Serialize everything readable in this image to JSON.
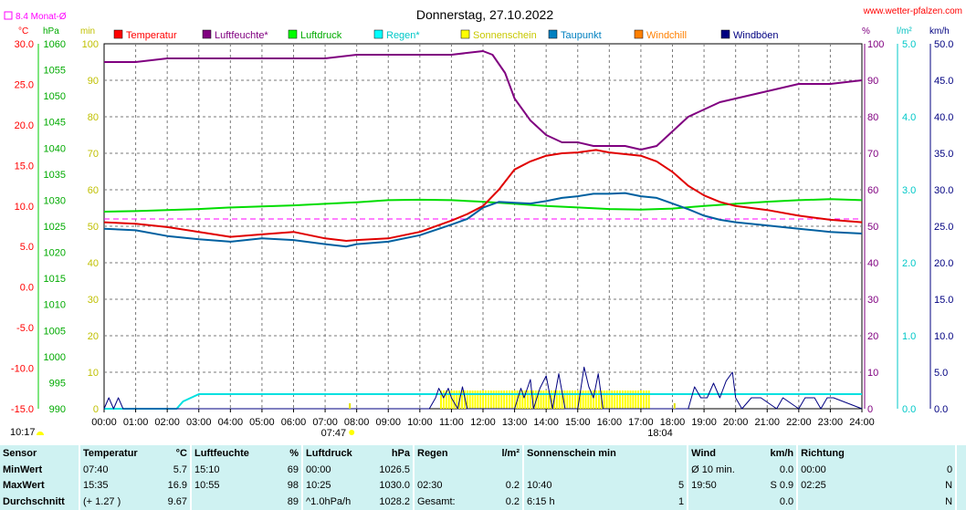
{
  "title": "Donnerstag, 27.10.2022",
  "site": "www.wetter-pfalzen.com",
  "monthly_avg_label": "8.4 Monat-Ø",
  "colors": {
    "temperature": "#ff0000",
    "humidity": "#800080",
    "pressure": "#00cc00",
    "rain": "#00e0e0",
    "sunshine": "#e0e000",
    "dewpoint": "#0060a0",
    "windchill": "#ff8000",
    "gusts": "#000080",
    "monthavg": "#ff00ff"
  },
  "legend": [
    {
      "label": "Temperatur",
      "color": "#ff0000"
    },
    {
      "label": "Luftfeuchte*",
      "color": "#800080"
    },
    {
      "label": "Luftdruck",
      "color": "#00ff00"
    },
    {
      "label": "Regen*",
      "color": "#00ffff"
    },
    {
      "label": "Sonnenschein",
      "color": "#ffff00"
    },
    {
      "label": "Taupunkt",
      "color": "#0080c0"
    },
    {
      "label": "Windchill",
      "color": "#ff8000"
    },
    {
      "label": "Windböen",
      "color": "#000080"
    }
  ],
  "axis_units": {
    "temp": "°C",
    "pressure": "hPa",
    "min": "min",
    "percent": "%",
    "rain": "l/m²",
    "wind": "km/h"
  },
  "markers": {
    "sunrise": "07:47",
    "sunset": "18:04",
    "moon": "10:17"
  },
  "chart_data": {
    "type": "line",
    "x_unit": "time of day",
    "x_ticks": [
      "00:00",
      "01:00",
      "02:00",
      "03:00",
      "04:00",
      "05:00",
      "06:00",
      "07:00",
      "08:00",
      "09:00",
      "10:00",
      "11:00",
      "12:00",
      "13:00",
      "14:00",
      "15:00",
      "16:00",
      "17:00",
      "18:00",
      "19:00",
      "20:00",
      "21:00",
      "22:00",
      "23:00",
      "24:00"
    ],
    "axes": {
      "temp": {
        "ylim": [
          -15,
          30
        ],
        "ticks": [
          "30.0",
          "25.0",
          "20.0",
          "15.0",
          "10.0",
          "5.0",
          "0.0",
          "-5.0",
          "-10.0",
          "-15.0"
        ]
      },
      "pressure": {
        "ylim": [
          990,
          1060
        ],
        "ticks": [
          "1060",
          "1055",
          "1050",
          "1045",
          "1040",
          "1035",
          "1030",
          "1025",
          "1020",
          "1015",
          "1010",
          "1005",
          "1000",
          "995",
          "990"
        ]
      },
      "minutes": {
        "ylim": [
          0,
          100
        ],
        "ticks": [
          "100",
          "90",
          "80",
          "70",
          "60",
          "50",
          "40",
          "30",
          "20",
          "10",
          "0"
        ]
      },
      "percent": {
        "ylim": [
          0,
          100
        ],
        "ticks": [
          "100",
          "90",
          "80",
          "70",
          "60",
          "50",
          "40",
          "30",
          "20",
          "10",
          "0"
        ]
      },
      "rain": {
        "ylim": [
          0,
          5
        ],
        "ticks": [
          "5.0",
          "4.0",
          "3.0",
          "2.0",
          "1.0",
          "0.0"
        ]
      },
      "wind": {
        "ylim": [
          0,
          50
        ],
        "ticks": [
          "50.0",
          "45.0",
          "40.0",
          "35.0",
          "30.0",
          "25.0",
          "20.0",
          "15.0",
          "10.0",
          "5.0",
          "0.0"
        ]
      }
    },
    "month_average_temp": 8.4,
    "series": [
      {
        "name": "Temperatur",
        "axis": "temp",
        "x": [
          0,
          1,
          2,
          3,
          4,
          5,
          6,
          7,
          7.67,
          8,
          9,
          10,
          11,
          11.5,
          12,
          12.5,
          13,
          13.5,
          14,
          14.5,
          15,
          15.58,
          16,
          17,
          17.5,
          18,
          18.5,
          19,
          19.5,
          20,
          21,
          22,
          23,
          24
        ],
        "y": [
          8.0,
          7.8,
          7.4,
          6.8,
          6.2,
          6.5,
          6.8,
          6.0,
          5.7,
          5.8,
          6.0,
          6.8,
          8.2,
          9.0,
          10.0,
          12.0,
          14.5,
          15.5,
          16.2,
          16.5,
          16.6,
          16.9,
          16.6,
          16.2,
          15.5,
          14.2,
          12.5,
          11.3,
          10.5,
          10.0,
          9.5,
          8.8,
          8.3,
          8.0
        ]
      },
      {
        "name": "Taupunkt",
        "axis": "temp",
        "x": [
          0,
          1,
          2,
          3,
          4,
          5,
          6,
          7,
          7.67,
          8,
          9,
          10,
          11,
          11.5,
          12,
          12.5,
          13,
          13.5,
          14,
          14.5,
          15,
          15.5,
          16,
          16.5,
          17,
          17.5,
          18,
          18.5,
          19,
          19.5,
          20,
          21,
          22,
          23,
          24
        ],
        "y": [
          7.2,
          7.0,
          6.3,
          5.9,
          5.6,
          6.0,
          5.8,
          5.3,
          5.0,
          5.3,
          5.6,
          6.4,
          7.7,
          8.4,
          9.8,
          10.5,
          10.4,
          10.3,
          10.6,
          11.0,
          11.2,
          11.5,
          11.5,
          11.6,
          11.2,
          11.0,
          10.3,
          9.6,
          8.8,
          8.3,
          8.0,
          7.6,
          7.2,
          6.8,
          6.6
        ]
      },
      {
        "name": "Luftfeuchte*",
        "axis": "percent",
        "x": [
          0,
          1,
          2,
          3,
          4,
          5,
          6,
          7,
          8,
          9,
          10,
          11,
          12,
          12.3,
          12.7,
          13,
          13.5,
          14,
          14.5,
          15,
          15.5,
          16,
          16.5,
          17,
          17.5,
          18,
          18.5,
          19,
          19.5,
          20,
          20.5,
          21,
          22,
          23,
          24
        ],
        "y": [
          95,
          95,
          96,
          96,
          96,
          96,
          96,
          96,
          97,
          97,
          97,
          97,
          98,
          97,
          92,
          85,
          79,
          75,
          73,
          73,
          72,
          72,
          72,
          71,
          72,
          76,
          80,
          82,
          84,
          85,
          86,
          87,
          89,
          89,
          90
        ]
      },
      {
        "name": "Luftdruck",
        "axis": "pressure",
        "x": [
          0,
          1,
          2,
          3,
          4,
          5,
          6,
          7,
          8,
          9,
          10,
          11,
          12,
          13,
          14,
          15,
          16,
          17,
          18,
          19,
          20,
          21,
          22,
          23,
          24
        ],
        "y": [
          1027.8,
          1027.9,
          1028.1,
          1028.3,
          1028.6,
          1028.8,
          1029.0,
          1029.3,
          1029.6,
          1030.0,
          1030.1,
          1030.0,
          1029.7,
          1029.3,
          1028.9,
          1028.6,
          1028.3,
          1028.2,
          1028.4,
          1028.9,
          1029.3,
          1029.7,
          1030.0,
          1030.2,
          1030.0
        ]
      },
      {
        "name": "Regen*",
        "axis": "rain",
        "x": [
          0,
          2.3,
          2.5,
          3.0,
          3.5,
          4,
          24
        ],
        "y": [
          0,
          0,
          0.1,
          0.2,
          0.2,
          0.2,
          0.2
        ]
      },
      {
        "name": "Sonnenschein",
        "axis": "minutes",
        "type": "bars",
        "x_range": [
          10.67,
          17.33
        ],
        "values": [
          5
        ]
      },
      {
        "name": "Windböen",
        "axis": "wind",
        "x": [
          0,
          0.15,
          0.3,
          0.45,
          0.6,
          10.3,
          10.5,
          10.6,
          10.75,
          10.9,
          11.0,
          11.2,
          11.35,
          11.5,
          12.2,
          13,
          13.2,
          13.3,
          13.5,
          13.6,
          13.8,
          14,
          14.2,
          14.4,
          14.6,
          15,
          15.2,
          15.35,
          15.5,
          15.65,
          15.8,
          16,
          18.5,
          18.7,
          18.9,
          19.1,
          19.3,
          19.5,
          19.7,
          19.9,
          20,
          20.2,
          20.5,
          20.8,
          21.3,
          21.5,
          22,
          22.2,
          22.5,
          22.7,
          22.9,
          23.1,
          24
        ],
        "y": [
          0,
          1.5,
          0,
          1.5,
          0,
          0,
          1.5,
          2.8,
          1.5,
          2.8,
          1.5,
          0,
          3.0,
          0,
          0,
          0,
          2.8,
          1.5,
          4.0,
          0,
          2.8,
          4.5,
          0,
          4.8,
          0,
          0,
          5.7,
          3.0,
          1.5,
          4.8,
          0,
          0,
          0,
          3.0,
          1.5,
          1.5,
          3.5,
          1.5,
          3.8,
          5.0,
          1.5,
          0,
          1.5,
          1.5,
          0,
          1.5,
          0,
          1.5,
          1.5,
          0,
          1.5,
          1.5,
          0
        ]
      }
    ]
  },
  "stats": {
    "header": [
      "Sensor",
      "Temperatur",
      "°C",
      "Luftfeuchte",
      "%",
      "Luftdruck",
      "hPa",
      "Regen",
      "l/m²",
      "Sonnenschein min",
      "Wind",
      "km/h",
      "Richtung"
    ],
    "rows": [
      {
        "label": "MinWert",
        "cells": [
          "07:40",
          "5.7",
          "15:10",
          "69",
          "00:00",
          "1026.5",
          "",
          "",
          "",
          "",
          "Ø 10 min.",
          "0.0",
          "00:00",
          "0"
        ]
      },
      {
        "label": "MaxWert",
        "cells": [
          "15:35",
          "16.9",
          "10:55",
          "98",
          "10:25",
          "1030.0",
          "02:30",
          "0.2",
          "10:40",
          "5",
          "19:50",
          "S 0.9",
          "02:25",
          "N"
        ]
      },
      {
        "label": "Durchschnitt",
        "cells": [
          "(+ 1.27 )",
          "9.67",
          "",
          "89",
          "^1.0hPa/h",
          "1028.2",
          "Gesamt:",
          "0.2",
          "6:15 h",
          "1",
          "",
          "0.0",
          "",
          "N"
        ]
      }
    ]
  }
}
